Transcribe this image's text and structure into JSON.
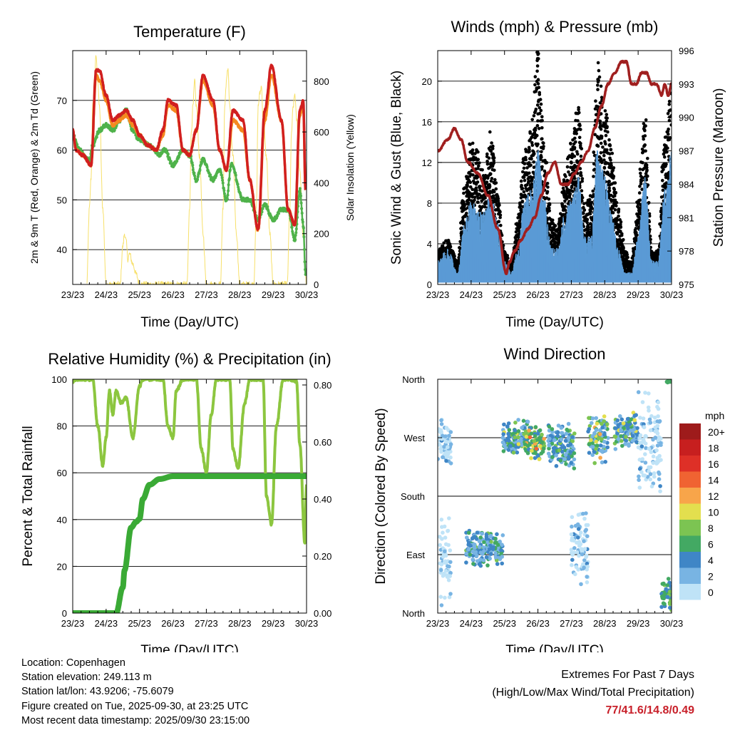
{
  "colors": {
    "temp_9m": "#d11f1f",
    "temp_2m": "#f5891f",
    "dewpoint": "#4fb24a",
    "solar": "#f7e06a",
    "gust": "#000000",
    "wind": "#5b9bd5",
    "pressure": "#a01f1f",
    "rh": "#8cc63f",
    "precip": "#3aaa35",
    "extremes": "#c8202a"
  },
  "x_ticks": [
    "23/23",
    "24/23",
    "25/23",
    "26/23",
    "27/23",
    "28/23",
    "29/23",
    "30/23"
  ],
  "xlabel": "Time (Day/UTC)",
  "chart_data": [
    {
      "id": "temperature",
      "type": "line",
      "title": "Temperature (F)",
      "ylabel_left": "2m & 9m T (Red, Orange) & 2m Td (Green)",
      "ylabel_right": "Solar Insolation (Yellow)",
      "xlabel": "Time (Day/UTC)",
      "x_range_days": [
        23,
        30
      ],
      "ylim_left": [
        33,
        80
      ],
      "ylim_right": [
        0,
        920
      ],
      "yticks_left": [
        40,
        50,
        60,
        70
      ],
      "yticks_right": [
        0,
        200,
        400,
        600,
        800
      ],
      "grid": true,
      "series": [
        {
          "name": "9m T",
          "x": [
            23.0,
            23.1,
            23.3,
            23.55,
            23.7,
            23.8,
            24.0,
            24.2,
            24.4,
            24.6,
            24.8,
            25.0,
            25.25,
            25.5,
            25.7,
            25.85,
            26.1,
            26.3,
            26.5,
            26.7,
            26.9,
            27.2,
            27.4,
            27.6,
            27.8,
            28.1,
            28.3,
            28.55,
            28.75,
            28.95,
            29.25,
            29.45,
            29.65,
            29.8,
            29.9,
            29.97
          ],
          "y": [
            64,
            60,
            59,
            57,
            76,
            76,
            71,
            66,
            67,
            68,
            66,
            63,
            61,
            60,
            64,
            70,
            69,
            60,
            59,
            64,
            75,
            70,
            60,
            56,
            68,
            66,
            54,
            44,
            68,
            77,
            66,
            48,
            45,
            68,
            70,
            52
          ]
        },
        {
          "name": "2m T",
          "x": [
            23.0,
            23.1,
            23.3,
            23.55,
            23.7,
            23.8,
            24.0,
            24.2,
            24.4,
            24.6,
            24.8,
            25.0,
            25.25,
            25.5,
            25.7,
            25.85,
            26.1,
            26.3,
            26.5,
            26.7,
            26.9,
            27.2,
            27.4,
            27.6,
            27.8,
            28.1,
            28.3,
            28.55,
            28.75,
            28.95,
            29.25,
            29.45,
            29.65,
            29.8,
            29.9,
            29.97
          ],
          "y": [
            64,
            60,
            59,
            57,
            75,
            74,
            70,
            65,
            66,
            67,
            65,
            63,
            61,
            60,
            63,
            69,
            68,
            60,
            59,
            64,
            74,
            69,
            60,
            56,
            66,
            64,
            54,
            44,
            66,
            75,
            66,
            48,
            45,
            67,
            69,
            52
          ]
        },
        {
          "name": "2m Td",
          "x": [
            23.0,
            23.2,
            23.5,
            23.6,
            23.8,
            24.0,
            24.2,
            24.4,
            24.6,
            24.8,
            25.0,
            25.3,
            25.6,
            25.75,
            26.0,
            26.3,
            26.5,
            26.7,
            26.9,
            27.2,
            27.4,
            27.6,
            27.75,
            28.1,
            28.3,
            28.55,
            28.75,
            29.0,
            29.25,
            29.45,
            29.65,
            29.8,
            29.9,
            29.97
          ],
          "y": [
            63,
            60,
            58,
            61,
            64,
            65,
            64,
            66,
            68,
            64,
            62,
            61,
            59,
            60,
            57,
            60,
            59,
            54,
            58,
            54,
            56,
            50,
            57,
            50,
            50,
            46,
            49,
            46,
            48,
            48,
            42,
            52,
            45,
            35
          ]
        },
        {
          "name": "Solar Insolation",
          "axis": "right",
          "x": [
            23.42,
            23.5,
            23.55,
            23.6,
            23.65,
            23.7,
            23.74,
            23.8,
            23.9,
            24.0,
            24.42,
            24.5,
            24.55,
            24.6,
            24.65,
            24.7,
            24.8,
            24.9,
            25.0,
            26.42,
            26.5,
            26.55,
            26.6,
            26.65,
            26.7,
            26.8,
            26.9,
            27.0,
            27.42,
            27.5,
            27.55,
            27.6,
            27.65,
            27.7,
            27.8,
            27.9,
            28.0,
            28.42,
            28.5,
            28.55,
            28.6,
            28.65,
            28.7,
            28.8,
            28.9,
            29.0,
            29.42,
            29.5,
            29.55,
            29.6,
            29.65,
            29.7,
            29.8,
            29.9,
            30.0
          ],
          "y": [
            0,
            300,
            420,
            700,
            810,
            900,
            820,
            700,
            300,
            0,
            0,
            150,
            200,
            170,
            100,
            120,
            80,
            40,
            0,
            0,
            300,
            600,
            700,
            800,
            700,
            500,
            200,
            0,
            0,
            300,
            700,
            800,
            850,
            700,
            500,
            200,
            0,
            0,
            300,
            700,
            750,
            780,
            650,
            500,
            200,
            0,
            0,
            300,
            600,
            700,
            750,
            650,
            450,
            180,
            0
          ]
        }
      ]
    },
    {
      "id": "winds",
      "type": "line",
      "title": "Winds (mph) & Pressure (mb)",
      "ylabel_left": "Sonic Wind & Gust (Blue, Black)",
      "ylabel_right": "Station Pressure (Maroon)",
      "xlabel": "Time (Day/UTC)",
      "x_range_days": [
        23,
        30
      ],
      "ylim_left": [
        0,
        23
      ],
      "ylim_right": [
        975,
        996
      ],
      "yticks_left": [
        0,
        4,
        8,
        12,
        16,
        20
      ],
      "yticks_right": [
        975,
        978,
        981,
        984,
        987,
        990,
        993,
        996
      ],
      "grid": true,
      "series": [
        {
          "name": "Gust",
          "x": [
            23.0,
            23.3,
            23.6,
            23.8,
            24.0,
            24.2,
            24.4,
            24.6,
            24.8,
            25.0,
            25.2,
            25.4,
            25.6,
            25.8,
            26.0,
            26.2,
            26.4,
            26.6,
            26.8,
            27.0,
            27.2,
            27.4,
            27.6,
            27.8,
            28.0,
            28.2,
            28.4,
            28.6,
            28.8,
            29.0,
            29.2,
            29.4,
            29.6,
            29.8,
            30.0
          ],
          "y": [
            3,
            4,
            2,
            9,
            13,
            12,
            10,
            14,
            8,
            3,
            2,
            6,
            12,
            14,
            21,
            12,
            6,
            5,
            10,
            13,
            16,
            7,
            8,
            20,
            16,
            12,
            7,
            3,
            2,
            8,
            16,
            3,
            3,
            13,
            18
          ]
        },
        {
          "name": "Sonic Wind",
          "x": [
            23.0,
            23.3,
            23.6,
            23.8,
            24.0,
            24.2,
            24.4,
            24.6,
            24.8,
            25.0,
            25.2,
            25.4,
            25.6,
            25.8,
            26.0,
            26.2,
            26.4,
            26.6,
            26.8,
            27.0,
            27.2,
            27.4,
            27.6,
            27.8,
            28.0,
            28.2,
            28.4,
            28.6,
            28.8,
            29.0,
            29.2,
            29.4,
            29.6,
            29.8,
            30.0
          ],
          "y": [
            2,
            3,
            1,
            5,
            7,
            6,
            6,
            8,
            5,
            2,
            1,
            3,
            7,
            8,
            11,
            7,
            3,
            3,
            6,
            7,
            9,
            4,
            4,
            12,
            9,
            6,
            3,
            1,
            1,
            4,
            9,
            2,
            2,
            8,
            11
          ]
        },
        {
          "name": "Station Pressure",
          "axis": "right",
          "x": [
            23.0,
            23.3,
            23.5,
            23.7,
            23.9,
            24.2,
            24.5,
            24.8,
            25.05,
            25.15,
            25.3,
            25.5,
            25.7,
            25.9,
            26.1,
            26.3,
            26.5,
            26.7,
            26.9,
            27.1,
            27.3,
            27.5,
            27.7,
            27.9,
            28.1,
            28.3,
            28.5,
            28.65,
            28.8,
            28.95,
            29.1,
            29.25,
            29.4,
            29.55,
            29.7,
            29.8,
            29.9,
            30.0
          ],
          "y": [
            987,
            988,
            989,
            988,
            986,
            985,
            983,
            980,
            976,
            977,
            978,
            979,
            980,
            981,
            983,
            985,
            986,
            984,
            984,
            985,
            986,
            987,
            989,
            991,
            993,
            994,
            995,
            995,
            993,
            993,
            994,
            994,
            993,
            993,
            992,
            993,
            992,
            993
          ]
        }
      ]
    },
    {
      "id": "rh_precip",
      "type": "line",
      "title": "Relative Humidity (%) & Precipitation (in)",
      "ylabel_left": "Percent & Total Rainfall",
      "xlabel": "Time (Day/UTC)",
      "x_range_days": [
        23,
        30
      ],
      "ylim_left": [
        0,
        100
      ],
      "ylim_right": [
        0,
        0.82
      ],
      "yticks_left": [
        0,
        20,
        40,
        60,
        80,
        100
      ],
      "yticks_right": [
        "0.00",
        "0.20",
        "0.40",
        "0.60",
        "0.80"
      ],
      "grid": true,
      "series": [
        {
          "name": "Relative Humidity",
          "x": [
            23.0,
            23.1,
            23.6,
            23.75,
            23.9,
            24.0,
            24.1,
            24.2,
            24.3,
            24.45,
            24.6,
            24.8,
            25.0,
            25.1,
            25.3,
            25.5,
            25.7,
            25.85,
            26.0,
            26.1,
            26.3,
            26.5,
            26.7,
            26.85,
            27.0,
            27.15,
            27.3,
            27.5,
            27.7,
            27.8,
            27.95,
            28.15,
            28.3,
            28.5,
            28.7,
            28.8,
            28.95,
            29.1,
            29.3,
            29.5,
            29.7,
            29.8,
            29.95,
            30.0
          ],
          "y": [
            99,
            100,
            100,
            80,
            63,
            75,
            95,
            85,
            95,
            90,
            92,
            75,
            97,
            100,
            100,
            100,
            100,
            80,
            75,
            95,
            100,
            100,
            100,
            70,
            60,
            85,
            100,
            100,
            100,
            70,
            62,
            90,
            100,
            100,
            100,
            50,
            38,
            80,
            100,
            100,
            99,
            72,
            30,
            55
          ]
        },
        {
          "name": "Total Precipitation",
          "axis": "right",
          "x": [
            23.0,
            23.5,
            24.0,
            24.3,
            24.5,
            24.55,
            24.75,
            24.9,
            25.0,
            25.1,
            25.3,
            25.6,
            26.0,
            27.0,
            28.0,
            29.0,
            30.0
          ],
          "y": [
            0.0,
            0.0,
            0.0,
            0.0,
            0.09,
            0.15,
            0.3,
            0.32,
            0.33,
            0.4,
            0.45,
            0.47,
            0.48,
            0.48,
            0.48,
            0.48,
            0.48
          ]
        }
      ]
    },
    {
      "id": "wind_direction",
      "type": "scatter",
      "title": "Wind Direction",
      "ylabel_left": "Direction (Colored By Speed)",
      "xlabel": "Time (Day/UTC)",
      "x_range_days": [
        23,
        30
      ],
      "yticks_left": [
        "North",
        "East",
        "South",
        "West",
        "North"
      ],
      "ylim_degrees": [
        0,
        360
      ],
      "grid": true,
      "colorbar": {
        "label": "mph",
        "levels": [
          "20+",
          "18",
          "16",
          "14",
          "12",
          "10",
          "8",
          "6",
          "4",
          "2",
          "0"
        ],
        "colors": [
          "#9e1b1b",
          "#c71f1f",
          "#de3027",
          "#f06332",
          "#f8a54a",
          "#e3df4e",
          "#7cc452",
          "#43a963",
          "#3f86c6",
          "#78b4e3",
          "#bfe3f7"
        ]
      },
      "clusters": [
        {
          "x": [
            23.0,
            23.4
          ],
          "dir": [
            220,
            300
          ],
          "speed": [
            0,
            4
          ]
        },
        {
          "x": [
            23.05,
            23.4
          ],
          "dir": [
            10,
            160
          ],
          "speed": [
            0,
            2
          ]
        },
        {
          "x": [
            23.85,
            24.95
          ],
          "dir": [
            70,
            130
          ],
          "speed": [
            2,
            10
          ]
        },
        {
          "x": [
            24.95,
            25.7
          ],
          "dir": [
            240,
            300
          ],
          "speed": [
            2,
            12
          ]
        },
        {
          "x": [
            25.6,
            26.2
          ],
          "dir": [
            235,
            290
          ],
          "speed": [
            4,
            16
          ]
        },
        {
          "x": [
            26.3,
            27.1
          ],
          "dir": [
            220,
            300
          ],
          "speed": [
            2,
            10
          ]
        },
        {
          "x": [
            27.0,
            27.5
          ],
          "dir": [
            40,
            170
          ],
          "speed": [
            0,
            4
          ]
        },
        {
          "x": [
            27.5,
            28.1
          ],
          "dir": [
            230,
            310
          ],
          "speed": [
            2,
            14
          ]
        },
        {
          "x": [
            28.3,
            29.0
          ],
          "dir": [
            250,
            310
          ],
          "speed": [
            2,
            12
          ]
        },
        {
          "x": [
            29.0,
            29.7
          ],
          "dir": [
            180,
            350
          ],
          "speed": [
            0,
            4
          ]
        },
        {
          "x": [
            29.7,
            30.0
          ],
          "dir": [
            0,
            60
          ],
          "speed": [
            4,
            10
          ]
        },
        {
          "x": [
            29.85,
            30.0
          ],
          "dir": [
            355,
            360
          ],
          "speed": [
            6,
            8
          ]
        }
      ]
    }
  ],
  "footer": {
    "location": "Location: Copenhagen",
    "elevation": "Station elevation: 249.113 m",
    "latlon": "Station lat/lon: 43.9206; -75.6079",
    "created": "Figure created on Tue, 2025-09-30, at 23:25 UTC",
    "recent": "Most recent data timestamp: 2025/09/30 23:15:00"
  },
  "extremes": {
    "title": "Extremes For Past 7 Days",
    "subtitle": "(High/Low/Max Wind/Total Precipitation)",
    "values": "77/41.6/14.8/0.49"
  }
}
